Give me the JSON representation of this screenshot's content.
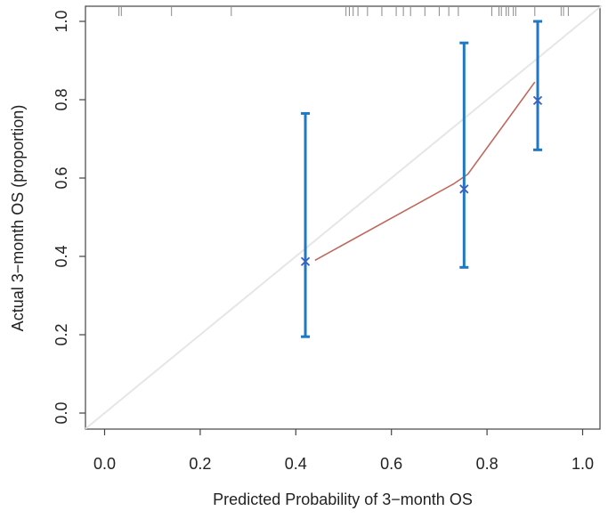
{
  "chart_data": {
    "type": "scatter",
    "title": "",
    "xlabel": "Predicted Probability of 3−month OS",
    "ylabel": "Actual 3−month OS (proportion)",
    "xlim": [
      -0.04,
      1.04
    ],
    "ylim": [
      -0.04,
      1.04
    ],
    "x_ticks": [
      "0.0",
      "0.2",
      "0.4",
      "0.6",
      "0.8",
      "1.0"
    ],
    "y_ticks": [
      "0.0",
      "0.2",
      "0.4",
      "0.6",
      "0.8",
      "1.0"
    ],
    "grid": false,
    "reference_line": {
      "from": [
        0,
        0
      ],
      "to": [
        1,
        1
      ],
      "color": "#e6e6e6"
    },
    "points": [
      {
        "x": 0.42,
        "y": 0.387,
        "ci_low": 0.195,
        "ci_high": 0.765
      },
      {
        "x": 0.752,
        "y": 0.572,
        "ci_low": 0.372,
        "ci_high": 0.945
      },
      {
        "x": 0.906,
        "y": 0.798,
        "ci_low": 0.672,
        "ci_high": 1.0
      }
    ],
    "calibration_line": [
      [
        0.44,
        0.39
      ],
      [
        0.73,
        0.585
      ],
      [
        0.76,
        0.61
      ],
      [
        0.9,
        0.845
      ]
    ],
    "rug_x": [
      0.03,
      0.035,
      0.14,
      0.265,
      0.505,
      0.512,
      0.52,
      0.53,
      0.55,
      0.58,
      0.61,
      0.625,
      0.64,
      0.67,
      0.7,
      0.72,
      0.74,
      0.81,
      0.825,
      0.83,
      0.84,
      0.845,
      0.855,
      0.86,
      0.9,
      0.955,
      0.96,
      0.97
    ],
    "colors": {
      "error_bar": "#1f78c1",
      "point_marker": "#3a5fbf",
      "calibration_line": "#c0675c",
      "reference_line": "#e6e6e6",
      "rug": "#888888",
      "axis": "#444444"
    }
  }
}
